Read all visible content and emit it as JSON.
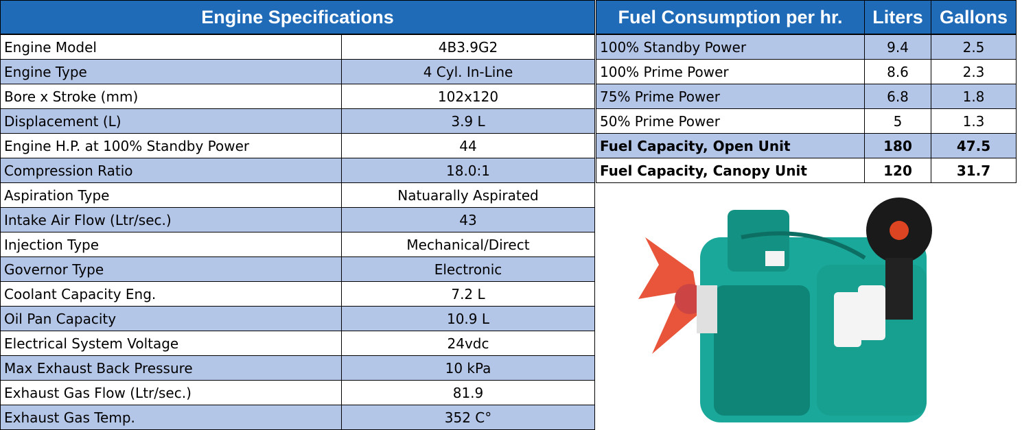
{
  "engine_specs": {
    "title": "Engine Specifications",
    "rows": [
      [
        "Engine Model",
        "4B3.9G2"
      ],
      [
        "Engine Type",
        "4 Cyl. In-Line"
      ],
      [
        "Bore x Stroke (mm)",
        "102x120"
      ],
      [
        "Displacement (L)",
        "3.9 L"
      ],
      [
        "Engine H.P. at 100% Standby Power",
        "44"
      ],
      [
        "Compression Ratio",
        "18.0:1"
      ],
      [
        "Aspiration Type",
        "Natuarally Aspirated"
      ],
      [
        "Intake Air Flow (Ltr/sec.)",
        "43"
      ],
      [
        "Injection Type",
        "Mechanical/Direct"
      ],
      [
        "Governor Type",
        "Electronic"
      ],
      [
        "Coolant Capacity Eng.",
        "7.2 L"
      ],
      [
        "Oil Pan Capacity",
        "10.9 L"
      ],
      [
        "Electrical System Voltage",
        "24vdc"
      ],
      [
        "Max Exhaust Back Pressure",
        "10 kPa"
      ],
      [
        "Exhaust Gas Flow (Ltr/sec.)",
        "81.9"
      ],
      [
        "Exhaust Gas Temp.",
        "352 C°"
      ]
    ]
  },
  "fuel": {
    "header": [
      "Fuel Consumption per hr.",
      "Liters",
      "Gallons"
    ],
    "rows": [
      [
        "100% Standby Power",
        "9.4",
        "2.5"
      ],
      [
        "100% Prime Power",
        "8.6",
        "2.3"
      ],
      [
        "75% Prime Power",
        "6.8",
        "1.8"
      ],
      [
        "50% Prime Power",
        "5",
        "1.3"
      ],
      [
        "Fuel Capacity, Open Unit",
        "180",
        "47.5"
      ],
      [
        "Fuel Capacity, Canopy Unit",
        "120",
        "31.7"
      ]
    ]
  }
}
